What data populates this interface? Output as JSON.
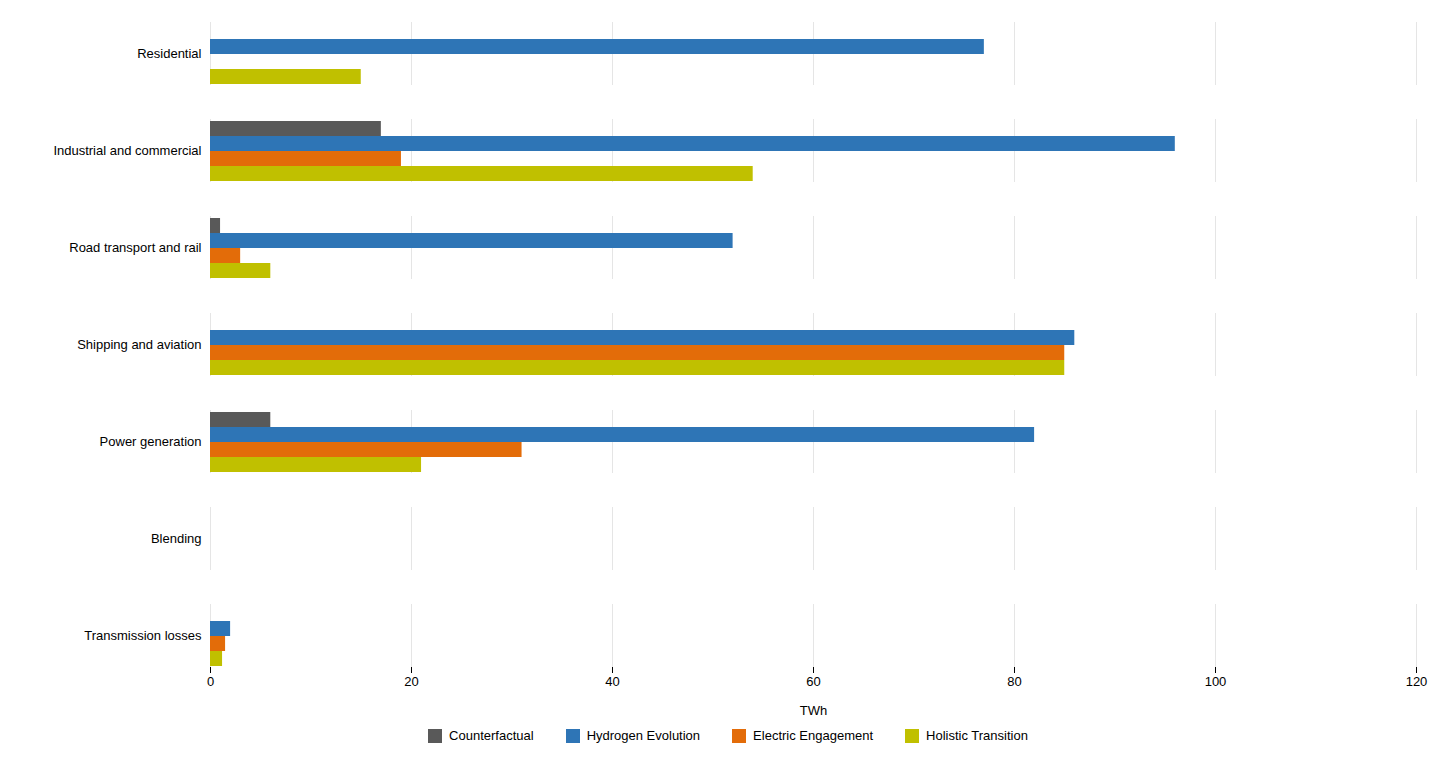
{
  "chart_data": {
    "type": "bar",
    "orientation": "horizontal",
    "categories": [
      "Residential",
      "Industrial and commercial",
      "Road transport and rail",
      "Shipping and aviation",
      "Power generation",
      "Blending",
      "Transmission losses"
    ],
    "series": [
      {
        "name": "Counterfactual",
        "color": "#595959",
        "values": [
          0,
          17,
          1,
          0,
          6,
          0,
          0
        ]
      },
      {
        "name": "Hydrogen Evolution",
        "color": "#2e75b6",
        "values": [
          77,
          96,
          52,
          86,
          82,
          0,
          2
        ]
      },
      {
        "name": "Electric Engagement",
        "color": "#e36c09",
        "values": [
          0,
          19,
          3,
          85,
          31,
          0,
          1.5
        ]
      },
      {
        "name": "Holistic Transition",
        "color": "#c0c000",
        "values": [
          15,
          54,
          6,
          85,
          21,
          0,
          1.2
        ]
      }
    ],
    "xlabel": "TWh",
    "xlim": [
      0,
      120
    ],
    "xticks": [
      0,
      20,
      40,
      60,
      80,
      100,
      120
    ],
    "grid": true,
    "legend": "bottom"
  }
}
